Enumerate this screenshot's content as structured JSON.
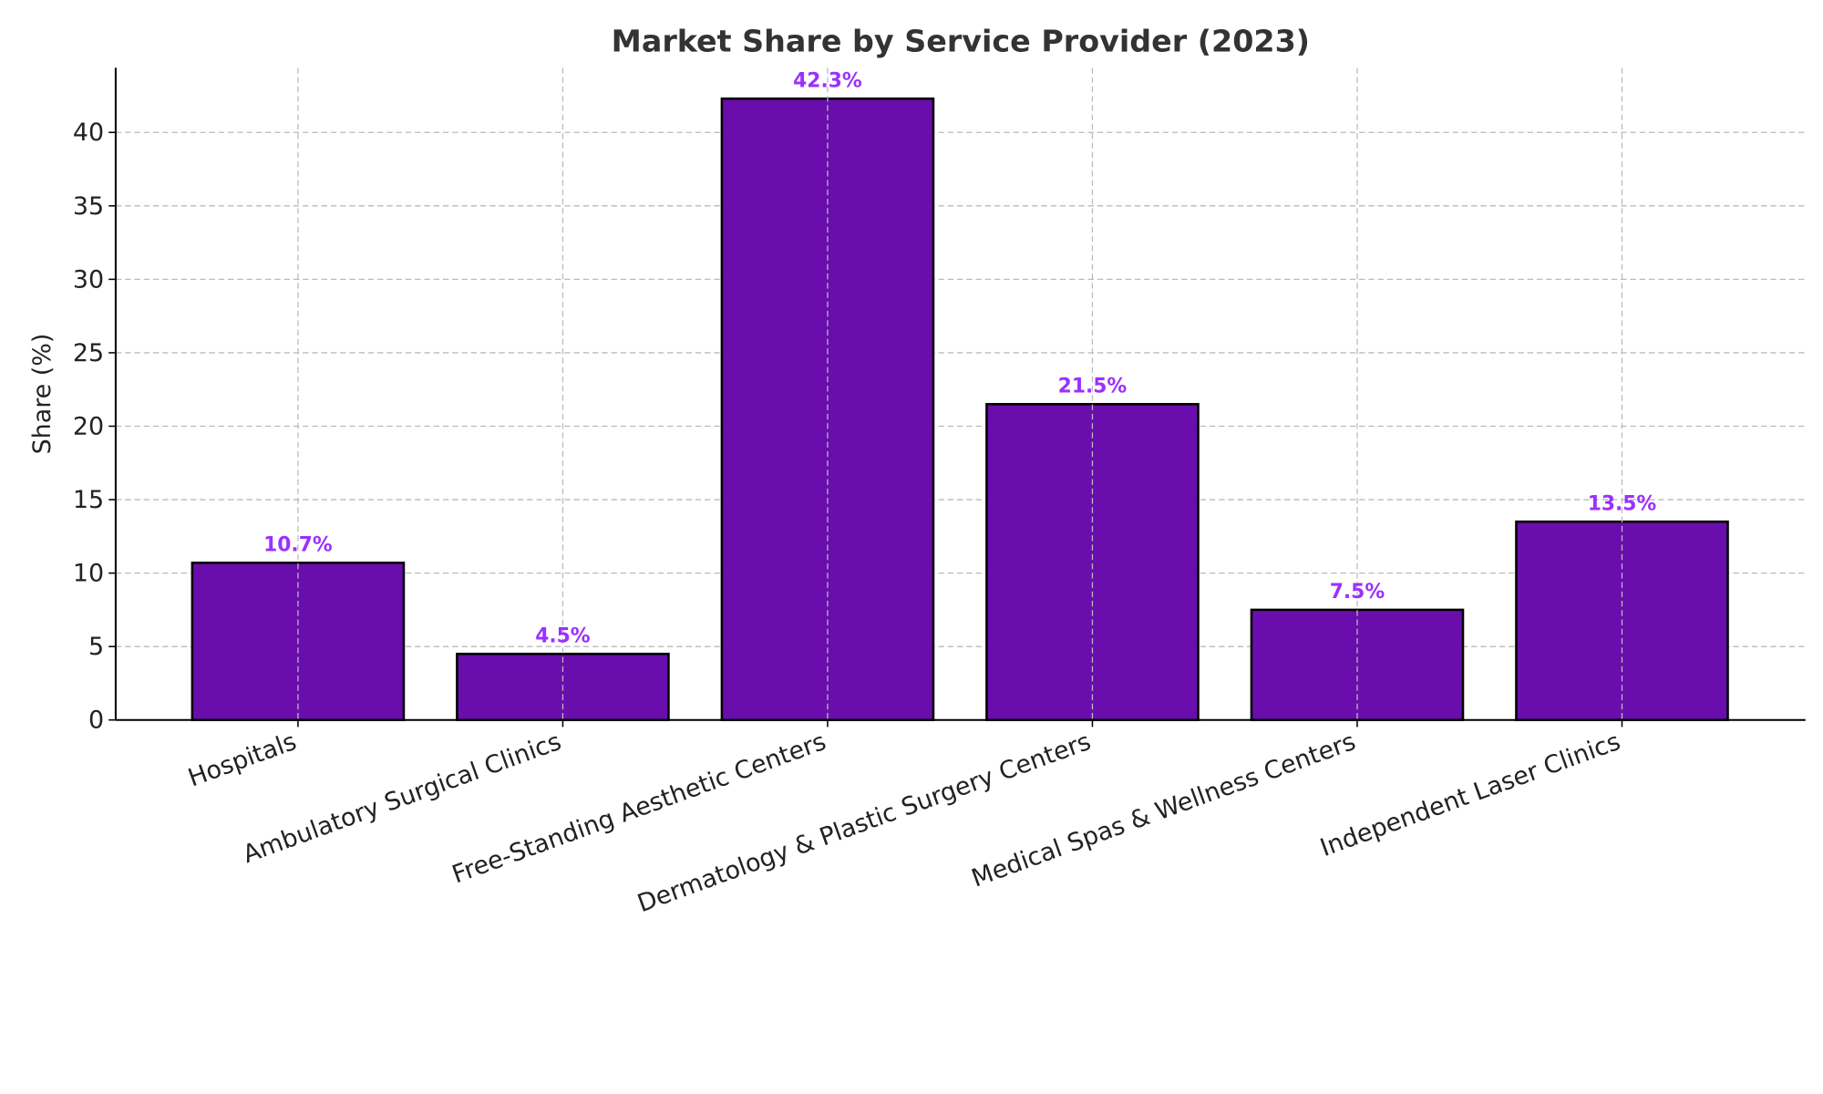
{
  "chart_data": {
    "type": "bar",
    "title": "Market Share by Service Provider (2023)",
    "xlabel": "",
    "ylabel": "Share (%)",
    "ylim": [
      0,
      44.4
    ],
    "yticks": [
      0,
      5,
      10,
      15,
      20,
      25,
      30,
      35,
      40
    ],
    "grid": true,
    "categories": [
      "Hospitals",
      "Ambulatory Surgical Clinics",
      "Free-Standing Aesthetic Centers",
      "Dermatology & Plastic Surgery Centers",
      "Medical Spas & Wellness Centers",
      "Independent Laser Clinics"
    ],
    "values": [
      10.7,
      4.5,
      42.3,
      21.5,
      7.5,
      13.5
    ],
    "data_labels": [
      "10.7%",
      "4.5%",
      "42.3%",
      "21.5%",
      "7.5%",
      "13.5%"
    ],
    "colors": {
      "bar": "#6a0dad",
      "bar_edge": "#000000",
      "data_label": "#9b30ff",
      "title": "#333333"
    }
  }
}
